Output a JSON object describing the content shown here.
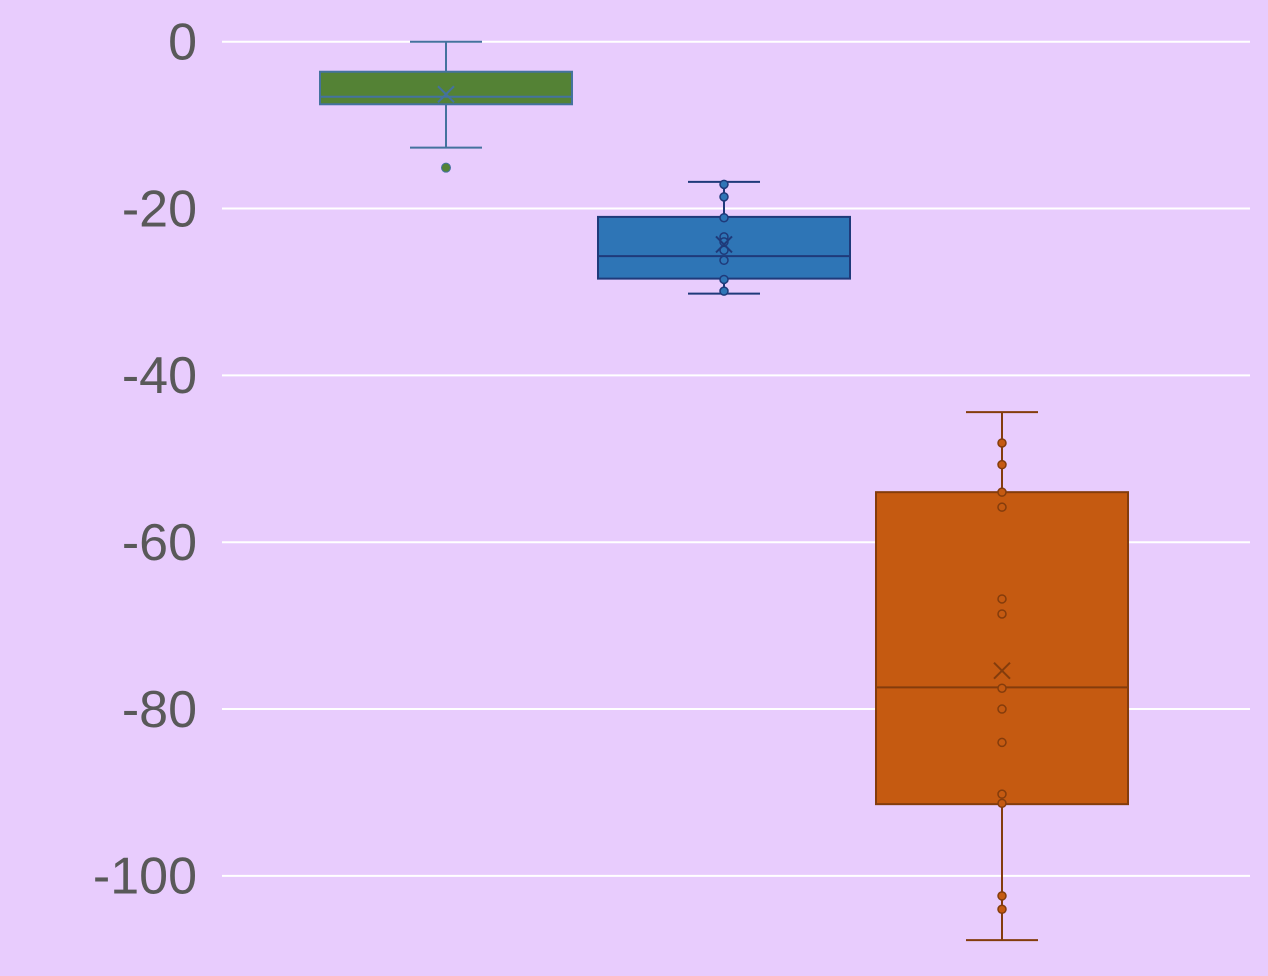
{
  "chart_data": {
    "type": "box",
    "ylim": [
      -112,
      5
    ],
    "yticks": [
      0,
      -20,
      -40,
      -60,
      -80,
      -100
    ],
    "grid": true,
    "boxes": [
      {
        "color": "#548235",
        "edge": "#44729e",
        "min": -12.7,
        "q1": -7.5,
        "median": -6.6,
        "q3": -3.6,
        "max": 0,
        "mean": -6.3,
        "points": [],
        "outliers": [
          -15.1
        ]
      },
      {
        "color": "#2e75b6",
        "edge": "#1f3a7a",
        "min": -30.2,
        "q1": -28.4,
        "median": -25.7,
        "q3": -21.0,
        "max": -16.8,
        "mean": -24.3,
        "points": [
          -17.1,
          -18.6,
          -21.1,
          -23.4,
          -24.0,
          -25.0,
          -26.2,
          -28.5,
          -29.9
        ],
        "outliers": []
      },
      {
        "color": "#c55a11",
        "edge": "#843c0c",
        "min": -107.7,
        "q1": -91.4,
        "median": -77.4,
        "q3": -54.0,
        "max": -44.4,
        "mean": -75.4,
        "points": [
          -48.1,
          -50.7,
          -54.0,
          -55.8,
          -66.8,
          -68.6,
          -77.5,
          -80.0,
          -84.0,
          -90.2,
          -91.3,
          -102.4,
          -104.0
        ],
        "outliers": []
      }
    ]
  }
}
